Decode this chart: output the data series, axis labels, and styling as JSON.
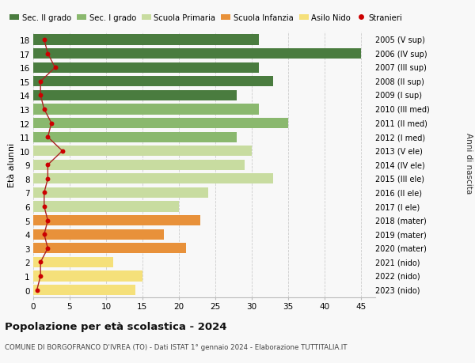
{
  "ages": [
    0,
    1,
    2,
    3,
    4,
    5,
    6,
    7,
    8,
    9,
    10,
    11,
    12,
    13,
    14,
    15,
    16,
    17,
    18
  ],
  "bar_values": [
    14,
    15,
    11,
    21,
    18,
    23,
    20,
    24,
    33,
    29,
    30,
    28,
    35,
    31,
    28,
    33,
    31,
    45,
    31
  ],
  "bar_colors": [
    "#f5e07a",
    "#f5e07a",
    "#f5e07a",
    "#e8913a",
    "#e8913a",
    "#e8913a",
    "#c8dca0",
    "#c8dca0",
    "#c8dca0",
    "#c8dca0",
    "#c8dca0",
    "#8ab86e",
    "#8ab86e",
    "#8ab86e",
    "#4a7c3f",
    "#4a7c3f",
    "#4a7c3f",
    "#4a7c3f",
    "#4a7c3f"
  ],
  "stranieri_values": [
    0.5,
    1,
    1,
    2,
    1.5,
    2,
    1.5,
    1.5,
    2,
    2,
    4,
    2,
    2.5,
    1.5,
    1,
    1,
    3,
    2,
    1.5
  ],
  "right_labels": [
    "2023 (nido)",
    "2022 (nido)",
    "2021 (nido)",
    "2020 (mater)",
    "2019 (mater)",
    "2018 (mater)",
    "2017 (I ele)",
    "2016 (II ele)",
    "2015 (III ele)",
    "2014 (IV ele)",
    "2013 (V ele)",
    "2012 (I med)",
    "2011 (II med)",
    "2010 (III med)",
    "2009 (I sup)",
    "2008 (II sup)",
    "2007 (III sup)",
    "2006 (IV sup)",
    "2005 (V sup)"
  ],
  "legend_labels": [
    "Sec. II grado",
    "Sec. I grado",
    "Scuola Primaria",
    "Scuola Infanzia",
    "Asilo Nido",
    "Stranieri"
  ],
  "legend_colors": [
    "#4a7c3f",
    "#8ab86e",
    "#c8dca0",
    "#e8913a",
    "#f5e07a",
    "#cc0000"
  ],
  "ylabel": "Età alunni",
  "right_ylabel": "Anni di nascita",
  "title": "Popolazione per età scolastica - 2024",
  "subtitle": "COMUNE DI BORGOFRANCO D'IVREA (TO) - Dati ISTAT 1° gennaio 2024 - Elaborazione TUTTITALIA.IT",
  "xlim": [
    0,
    47
  ],
  "xticks": [
    0,
    5,
    10,
    15,
    20,
    25,
    30,
    35,
    40,
    45
  ],
  "bg_color": "#f8f8f8",
  "bar_height": 0.75,
  "stranieri_color": "#cc0000",
  "line_color": "#aa2222"
}
